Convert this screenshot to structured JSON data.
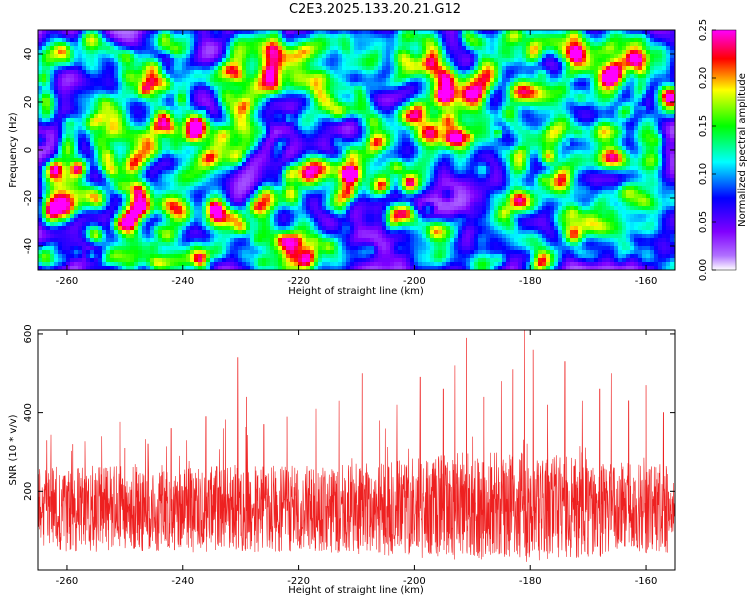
{
  "title": "C2E3.2025.133.20.21.G12",
  "chart_data": [
    {
      "type": "heatmap",
      "title": "",
      "xlabel": "Height of straight line (km)",
      "ylabel": "Frequency (Hz)",
      "xlim": [
        -265,
        -155
      ],
      "ylim": [
        -50,
        50
      ],
      "xticks": [
        -260,
        -240,
        -220,
        -200,
        -180,
        -160
      ],
      "yticks": [
        -40,
        -20,
        0,
        20,
        40
      ],
      "colorbar": {
        "label": "Normalized spectral amplitude",
        "range": [
          0,
          0.25
        ],
        "ticks": [
          "0.00",
          "0.05",
          "0.10",
          "0.15",
          "0.20",
          "0.25"
        ],
        "colors": [
          "#ffffff",
          "#8000ff",
          "#0000ff",
          "#00ffff",
          "#00ff00",
          "#ffff00",
          "#ff0000",
          "#ff00ff"
        ]
      },
      "background_level": 0.05,
      "hotspots": [
        {
          "x": -191,
          "y": 6,
          "v": 0.22
        },
        {
          "x": -176,
          "y": 10,
          "v": 0.18
        },
        {
          "x": -186,
          "y": 8,
          "v": 0.15
        },
        {
          "x": -194,
          "y": 7,
          "v": 0.15
        },
        {
          "x": -181,
          "y": 8,
          "v": 0.13
        },
        {
          "x": -210,
          "y": 0,
          "v": 0.13
        },
        {
          "x": -216,
          "y": 16,
          "v": 0.12
        },
        {
          "x": -188,
          "y": 12,
          "v": 0.12
        },
        {
          "x": -237,
          "y": 16,
          "v": 0.12
        },
        {
          "x": -209,
          "y": 12,
          "v": 0.11
        },
        {
          "x": -253,
          "y": 8,
          "v": 0.11
        },
        {
          "x": -235,
          "y": 8,
          "v": 0.11
        },
        {
          "x": -207,
          "y": 8,
          "v": 0.11
        },
        {
          "x": -174,
          "y": 4,
          "v": 0.11
        },
        {
          "x": -168,
          "y": -2,
          "v": 0.11
        },
        {
          "x": -222,
          "y": 14,
          "v": 0.1
        },
        {
          "x": -175,
          "y": 26,
          "v": 0.1
        },
        {
          "x": -256,
          "y": -43,
          "v": 0.1
        },
        {
          "x": -253,
          "y": -4,
          "v": 0.1
        },
        {
          "x": -208,
          "y": -41,
          "v": 0.1
        },
        {
          "x": -161,
          "y": 18,
          "v": 0.1
        },
        {
          "x": -232,
          "y": 30,
          "v": 0.1
        },
        {
          "x": -198,
          "y": -24,
          "v": 0.09
        },
        {
          "x": -244,
          "y": 33,
          "v": 0.09
        },
        {
          "x": -163,
          "y": 45,
          "v": 0.09
        },
        {
          "x": -182,
          "y": -10,
          "v": 0.09
        },
        {
          "x": -200,
          "y": 18,
          "v": 0.09
        },
        {
          "x": -225,
          "y": -30,
          "v": 0.08
        },
        {
          "x": -161,
          "y": -22,
          "v": 0.08
        },
        {
          "x": -160,
          "y": 40,
          "v": 0.08
        }
      ]
    },
    {
      "type": "line",
      "title": "",
      "xlabel": "Height of straight line (km)",
      "ylabel": "SNR (10 * v/v)",
      "xlim": [
        -265,
        -155
      ],
      "ylim": [
        0,
        610
      ],
      "xticks": [
        -260,
        -240,
        -220,
        -200,
        -180,
        -160
      ],
      "yticks": [
        200,
        400,
        600
      ],
      "color": "#ee2020",
      "baseline": {
        "mean": 155,
        "jitter": 110,
        "floor": 20
      },
      "peaks": [
        {
          "x": -263.5,
          "y": 330
        },
        {
          "x": -259,
          "y": 320
        },
        {
          "x": -254,
          "y": 340
        },
        {
          "x": -250,
          "y": 310
        },
        {
          "x": -246,
          "y": 320
        },
        {
          "x": -242,
          "y": 360
        },
        {
          "x": -236,
          "y": 390
        },
        {
          "x": -233,
          "y": 360
        },
        {
          "x": -230.5,
          "y": 540
        },
        {
          "x": -229,
          "y": 440
        },
        {
          "x": -226,
          "y": 370
        },
        {
          "x": -222,
          "y": 390
        },
        {
          "x": -217,
          "y": 410
        },
        {
          "x": -213,
          "y": 430
        },
        {
          "x": -209,
          "y": 500
        },
        {
          "x": -206,
          "y": 380
        },
        {
          "x": -203,
          "y": 420
        },
        {
          "x": -199,
          "y": 490
        },
        {
          "x": -195,
          "y": 460
        },
        {
          "x": -193,
          "y": 520
        },
        {
          "x": -191,
          "y": 590
        },
        {
          "x": -188,
          "y": 440
        },
        {
          "x": -185,
          "y": 480
        },
        {
          "x": -183,
          "y": 510
        },
        {
          "x": -181,
          "y": 610
        },
        {
          "x": -179.5,
          "y": 560
        },
        {
          "x": -177,
          "y": 420
        },
        {
          "x": -174,
          "y": 530
        },
        {
          "x": -171,
          "y": 430
        },
        {
          "x": -168,
          "y": 460
        },
        {
          "x": -166,
          "y": 500
        },
        {
          "x": -163,
          "y": 430
        },
        {
          "x": -160,
          "y": 470
        },
        {
          "x": -157,
          "y": 400
        }
      ]
    }
  ]
}
